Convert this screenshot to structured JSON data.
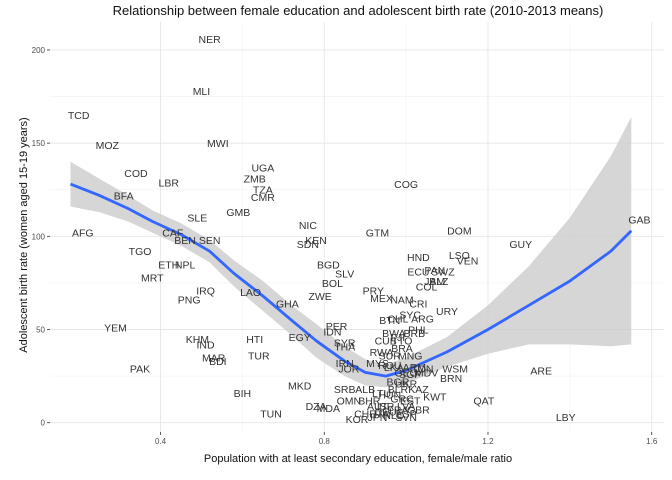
{
  "chart_data": {
    "type": "scatter",
    "title": "Relationship between female education and adolescent birth rate (2010-2013 means)",
    "xlabel": "Population with at least secondary education, female/male ratio",
    "ylabel": "Adolescent birth rate (women aged 15-19 years)",
    "xlim": [
      0.13,
      1.63
    ],
    "ylim": [
      -5,
      215
    ],
    "x_ticks": [
      0.4,
      0.8,
      1.2,
      1.6
    ],
    "x_tick_labels": [
      "0.4",
      "0.8",
      "1.2",
      "1.6"
    ],
    "y_ticks": [
      0,
      50,
      100,
      150,
      200
    ],
    "y_tick_labels": [
      "0",
      "50",
      "100",
      "150",
      "200"
    ],
    "grid": true,
    "points": [
      {
        "label": "NER",
        "x": 0.52,
        "y": 206
      },
      {
        "label": "MLI",
        "x": 0.5,
        "y": 178
      },
      {
        "label": "TCD",
        "x": 0.2,
        "y": 165
      },
      {
        "label": "MOZ",
        "x": 0.27,
        "y": 149
      },
      {
        "label": "MWI",
        "x": 0.54,
        "y": 150
      },
      {
        "label": "UGA",
        "x": 0.65,
        "y": 137
      },
      {
        "label": "ZMB",
        "x": 0.63,
        "y": 131
      },
      {
        "label": "COD",
        "x": 0.34,
        "y": 134
      },
      {
        "label": "LBR",
        "x": 0.42,
        "y": 129
      },
      {
        "label": "COG",
        "x": 1.0,
        "y": 128
      },
      {
        "label": "TZA",
        "x": 0.65,
        "y": 125
      },
      {
        "label": "CMR",
        "x": 0.65,
        "y": 121
      },
      {
        "label": "BFA",
        "x": 0.31,
        "y": 122
      },
      {
        "label": "GMB",
        "x": 0.59,
        "y": 113
      },
      {
        "label": "SLE",
        "x": 0.49,
        "y": 110
      },
      {
        "label": "GAB",
        "x": 1.57,
        "y": 109
      },
      {
        "label": "NIC",
        "x": 0.76,
        "y": 106
      },
      {
        "label": "AFG",
        "x": 0.21,
        "y": 102
      },
      {
        "label": "CAF",
        "x": 0.43,
        "y": 102
      },
      {
        "label": "GTM",
        "x": 0.93,
        "y": 102
      },
      {
        "label": "DOM",
        "x": 1.13,
        "y": 103
      },
      {
        "label": "BEN",
        "x": 0.46,
        "y": 98
      },
      {
        "label": "SEN",
        "x": 0.52,
        "y": 98
      },
      {
        "label": "KEN",
        "x": 0.78,
        "y": 98
      },
      {
        "label": "SDN",
        "x": 0.76,
        "y": 96
      },
      {
        "label": "GUY",
        "x": 1.28,
        "y": 96
      },
      {
        "label": "TGO",
        "x": 0.35,
        "y": 92
      },
      {
        "label": "HND",
        "x": 1.03,
        "y": 89
      },
      {
        "label": "LSO",
        "x": 1.13,
        "y": 90
      },
      {
        "label": "VEN",
        "x": 1.15,
        "y": 87
      },
      {
        "label": "ETH",
        "x": 0.42,
        "y": 85
      },
      {
        "label": "NPL",
        "x": 0.46,
        "y": 85
      },
      {
        "label": "BGD",
        "x": 0.81,
        "y": 85
      },
      {
        "label": "PAN",
        "x": 1.07,
        "y": 82
      },
      {
        "label": "ECU",
        "x": 1.03,
        "y": 81
      },
      {
        "label": "SWZ",
        "x": 1.09,
        "y": 81
      },
      {
        "label": "SLV",
        "x": 0.85,
        "y": 80
      },
      {
        "label": "MRT",
        "x": 0.38,
        "y": 78
      },
      {
        "label": "JAM",
        "x": 1.07,
        "y": 76
      },
      {
        "label": "BLZ",
        "x": 1.08,
        "y": 76
      },
      {
        "label": "BOL",
        "x": 0.82,
        "y": 75
      },
      {
        "label": "COL",
        "x": 1.05,
        "y": 73
      },
      {
        "label": "IRQ",
        "x": 0.51,
        "y": 71
      },
      {
        "label": "LAO",
        "x": 0.62,
        "y": 70
      },
      {
        "label": "PRY",
        "x": 0.92,
        "y": 71
      },
      {
        "label": "MEX",
        "x": 0.94,
        "y": 67
      },
      {
        "label": "ZWE",
        "x": 0.79,
        "y": 68
      },
      {
        "label": "NAM",
        "x": 0.99,
        "y": 66
      },
      {
        "label": "PNG",
        "x": 0.47,
        "y": 66
      },
      {
        "label": "GHA",
        "x": 0.71,
        "y": 64
      },
      {
        "label": "CRI",
        "x": 1.03,
        "y": 64
      },
      {
        "label": "URY",
        "x": 1.1,
        "y": 60
      },
      {
        "label": "SYC",
        "x": 1.01,
        "y": 58
      },
      {
        "label": "CHL",
        "x": 0.98,
        "y": 56
      },
      {
        "label": "ARG",
        "x": 1.04,
        "y": 56
      },
      {
        "label": "YEM",
        "x": 0.29,
        "y": 51
      },
      {
        "label": "BTN",
        "x": 0.96,
        "y": 55
      },
      {
        "label": "PER",
        "x": 0.83,
        "y": 52
      },
      {
        "label": "PHL",
        "x": 1.03,
        "y": 50
      },
      {
        "label": "BWA",
        "x": 0.97,
        "y": 48
      },
      {
        "label": "IDN",
        "x": 0.82,
        "y": 49
      },
      {
        "label": "BRB",
        "x": 1.02,
        "y": 48
      },
      {
        "label": "EGY",
        "x": 0.74,
        "y": 46
      },
      {
        "label": "FJI",
        "x": 0.98,
        "y": 46
      },
      {
        "label": "KHM",
        "x": 0.49,
        "y": 45
      },
      {
        "label": "HTI",
        "x": 0.63,
        "y": 45
      },
      {
        "label": "TTO",
        "x": 0.99,
        "y": 44
      },
      {
        "label": "SYR",
        "x": 0.85,
        "y": 43
      },
      {
        "label": "CUB",
        "x": 0.95,
        "y": 44
      },
      {
        "label": "IND",
        "x": 0.51,
        "y": 42
      },
      {
        "label": "THA",
        "x": 0.85,
        "y": 41
      },
      {
        "label": "RWA",
        "x": 0.94,
        "y": 38
      },
      {
        "label": "BRA",
        "x": 0.99,
        "y": 40
      },
      {
        "label": "TUR",
        "x": 0.64,
        "y": 36
      },
      {
        "label": "MAR",
        "x": 0.53,
        "y": 35
      },
      {
        "label": "SUR",
        "x": 0.96,
        "y": 36
      },
      {
        "label": "MNG",
        "x": 1.01,
        "y": 36
      },
      {
        "label": "BDI",
        "x": 0.54,
        "y": 33
      },
      {
        "label": "IRN",
        "x": 0.85,
        "y": 32
      },
      {
        "label": "MYS",
        "x": 0.93,
        "y": 32
      },
      {
        "label": "ROU",
        "x": 0.96,
        "y": 31
      },
      {
        "label": "LKA",
        "x": 0.97,
        "y": 30
      },
      {
        "label": "ARM",
        "x": 1.02,
        "y": 30
      },
      {
        "label": "JOR",
        "x": 0.86,
        "y": 29
      },
      {
        "label": "TON",
        "x": 1.04,
        "y": 29
      },
      {
        "label": "PAK",
        "x": 0.35,
        "y": 29
      },
      {
        "label": "WSM",
        "x": 1.12,
        "y": 29
      },
      {
        "label": "ARE",
        "x": 1.33,
        "y": 28
      },
      {
        "label": "GEO",
        "x": 1.0,
        "y": 27
      },
      {
        "label": "SGP",
        "x": 1.01,
        "y": 26
      },
      {
        "label": "MDV",
        "x": 1.05,
        "y": 27
      },
      {
        "label": "BRN",
        "x": 1.11,
        "y": 24
      },
      {
        "label": "BGR",
        "x": 0.98,
        "y": 22
      },
      {
        "label": "UKR",
        "x": 1.0,
        "y": 21
      },
      {
        "label": "MKD",
        "x": 0.74,
        "y": 20
      },
      {
        "label": "SRB",
        "x": 0.85,
        "y": 18
      },
      {
        "label": "ALB",
        "x": 0.9,
        "y": 18
      },
      {
        "label": "BLR",
        "x": 0.98,
        "y": 18
      },
      {
        "label": "KAZ",
        "x": 1.03,
        "y": 18
      },
      {
        "label": "BIH",
        "x": 0.6,
        "y": 16
      },
      {
        "label": "LTU",
        "x": 0.94,
        "y": 16
      },
      {
        "label": "HUN",
        "x": 0.96,
        "y": 15
      },
      {
        "label": "KWT",
        "x": 1.07,
        "y": 14
      },
      {
        "label": "OMN",
        "x": 0.86,
        "y": 12
      },
      {
        "label": "BHR",
        "x": 0.91,
        "y": 12
      },
      {
        "label": "GRC",
        "x": 0.99,
        "y": 13
      },
      {
        "label": "EST",
        "x": 1.01,
        "y": 12
      },
      {
        "label": "QAT",
        "x": 1.19,
        "y": 12
      },
      {
        "label": "DZA",
        "x": 0.78,
        "y": 9
      },
      {
        "label": "ISR",
        "x": 0.95,
        "y": 9
      },
      {
        "label": "AUT",
        "x": 0.93,
        "y": 9
      },
      {
        "label": "LVA",
        "x": 1.0,
        "y": 9
      },
      {
        "label": "MDA",
        "x": 0.81,
        "y": 8
      },
      {
        "label": "DEU",
        "x": 0.95,
        "y": 6
      },
      {
        "label": "FRA",
        "x": 0.98,
        "y": 7
      },
      {
        "label": "GBR",
        "x": 1.03,
        "y": 7
      },
      {
        "label": "TUN",
        "x": 0.67,
        "y": 5
      },
      {
        "label": "CHE",
        "x": 0.9,
        "y": 5
      },
      {
        "label": "ITA",
        "x": 0.94,
        "y": 5
      },
      {
        "label": "NLD",
        "x": 0.97,
        "y": 4
      },
      {
        "label": "ESP",
        "x": 1.0,
        "y": 5
      },
      {
        "label": "KOR",
        "x": 0.88,
        "y": 2
      },
      {
        "label": "JPN",
        "x": 0.93,
        "y": 3
      },
      {
        "label": "SVN",
        "x": 1.0,
        "y": 3
      },
      {
        "label": "LBY",
        "x": 1.39,
        "y": 3
      }
    ],
    "smooth": {
      "method": "loess",
      "color": "#3366ff",
      "band_color": "#cccccc",
      "x": [
        0.18,
        0.25,
        0.32,
        0.38,
        0.45,
        0.52,
        0.58,
        0.65,
        0.72,
        0.78,
        0.85,
        0.9,
        0.95,
        1.0,
        1.1,
        1.2,
        1.3,
        1.4,
        1.5,
        1.55
      ],
      "y": [
        128,
        122,
        115,
        108,
        101,
        92,
        80,
        68,
        55,
        44,
        33,
        27,
        25,
        28,
        38,
        50,
        63,
        76,
        92,
        103
      ],
      "lower": [
        116,
        113,
        108,
        102,
        95,
        86,
        73,
        60,
        47,
        35,
        25,
        20,
        19,
        21,
        30,
        37,
        42,
        42,
        41,
        42
      ],
      "upper": [
        140,
        131,
        122,
        114,
        107,
        98,
        87,
        76,
        63,
        53,
        41,
        34,
        31,
        35,
        46,
        63,
        84,
        110,
        143,
        164
      ]
    }
  }
}
